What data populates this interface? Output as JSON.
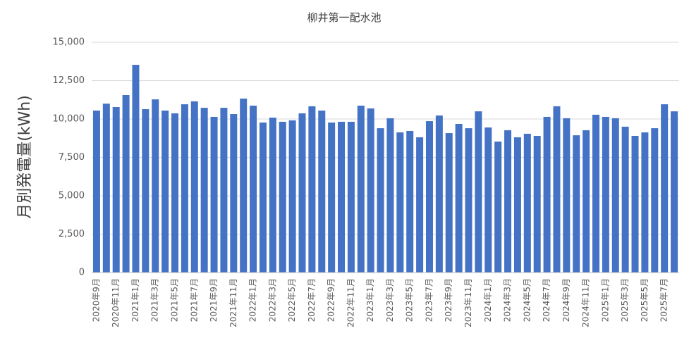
{
  "chart_data": {
    "type": "bar",
    "title": "柳井第一配水池",
    "y_label": "月別発電量(kWh)",
    "categories": [
      "2020年9月",
      null,
      "2020年11月",
      null,
      "2021年1月",
      null,
      "2021年3月",
      null,
      "2021年5月",
      null,
      "2021年7月",
      null,
      "2021年9月",
      null,
      "2021年11月",
      null,
      "2022年1月",
      null,
      "2022年3月",
      null,
      "2022年5月",
      null,
      "2022年7月",
      null,
      "2022年9月",
      null,
      "2022年11月",
      null,
      "2023年1月",
      null,
      "2023年3月",
      null,
      "2023年5月",
      null,
      "2023年7月",
      null,
      "2023年9月",
      null,
      "2023年11月",
      null,
      "2024年1月",
      null,
      "2024年3月",
      null,
      "2024年5月",
      null,
      "2024年7月",
      null,
      "2024年9月",
      null,
      "2024年11月",
      null,
      "2025年1月",
      null,
      "2025年3月",
      null,
      "2025年5月",
      null,
      "2025年7月",
      null
    ],
    "values": [
      10550,
      11000,
      10780,
      11560,
      13530,
      10640,
      11280,
      10550,
      10370,
      10960,
      11150,
      10730,
      10140,
      10730,
      10320,
      11330,
      10870,
      9770,
      10090,
      9820,
      9910,
      10370,
      10830,
      10550,
      9770,
      9820,
      9820,
      10870,
      10690,
      9400,
      10050,
      9130,
      9220,
      8810,
      9860,
      10230,
      9080,
      9680,
      9400,
      10500,
      9450,
      8530,
      9270,
      8810,
      9040,
      8900,
      10140,
      10830,
      10050,
      8940,
      9270,
      10280,
      10140,
      10050,
      9500,
      8900,
      9130,
      9400,
      10960,
      10500
    ],
    "color": "#4472c4",
    "ylim": [
      0,
      15000
    ],
    "yticks": [
      0,
      {
        "value": 2500,
        "label": "2,500"
      },
      {
        "value": 5000,
        "label": "5,000"
      },
      {
        "value": 7500,
        "label": "7,500"
      },
      {
        "value": 10000,
        "label": "10,000"
      },
      {
        "value": 12500,
        "label": "12,500"
      },
      {
        "value": 15000,
        "label": "15,000"
      }
    ],
    "grid": true
  }
}
